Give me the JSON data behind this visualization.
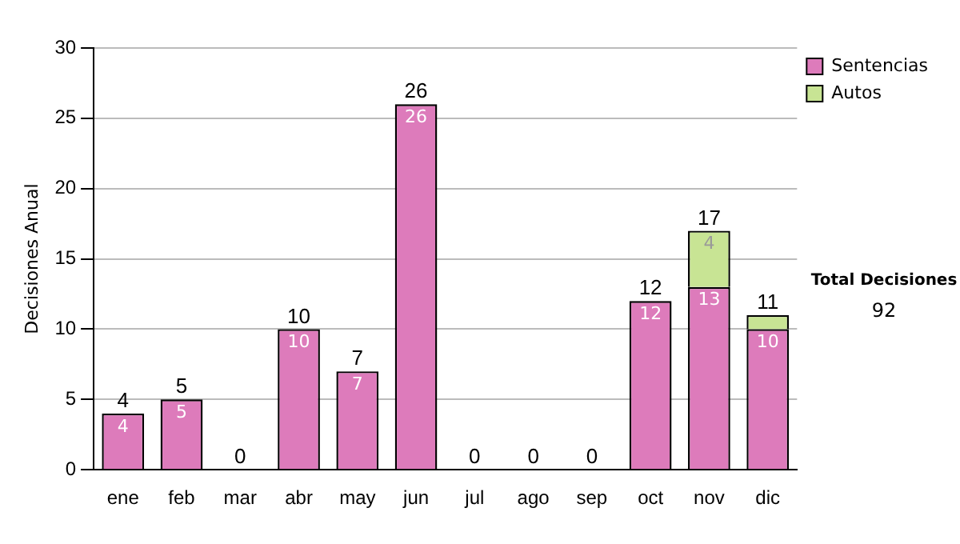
{
  "chart_data": {
    "type": "bar",
    "stacked": true,
    "ylabel": "Decisiones Anual",
    "categories": [
      "ene",
      "feb",
      "mar",
      "abr",
      "may",
      "jun",
      "jul",
      "ago",
      "sep",
      "oct",
      "nov",
      "dic"
    ],
    "series": [
      {
        "name": "Sentencias",
        "color": "#dd7bbb",
        "values": [
          4,
          5,
          0,
          10,
          7,
          26,
          0,
          0,
          0,
          12,
          13,
          10
        ],
        "value_labels": [
          "4",
          "5",
          null,
          "10",
          "7",
          "26",
          null,
          null,
          null,
          "12",
          "13",
          "10"
        ]
      },
      {
        "name": "Autos",
        "color": "#c8e494",
        "values": [
          0,
          0,
          0,
          0,
          0,
          0,
          0,
          0,
          0,
          0,
          4,
          1
        ],
        "value_labels": [
          null,
          null,
          null,
          null,
          null,
          null,
          null,
          null,
          null,
          null,
          "4",
          null
        ]
      }
    ],
    "totals": [
      "4",
      "5",
      "0",
      "10",
      "7",
      "26",
      "0",
      "0",
      "0",
      "12",
      "17",
      "11"
    ],
    "ylim": [
      0,
      30
    ],
    "yticks": [
      0,
      5,
      10,
      15,
      20,
      25,
      30
    ],
    "grid": "y",
    "legend": "right",
    "annotations": [
      "Total Decisiones",
      "92"
    ]
  }
}
